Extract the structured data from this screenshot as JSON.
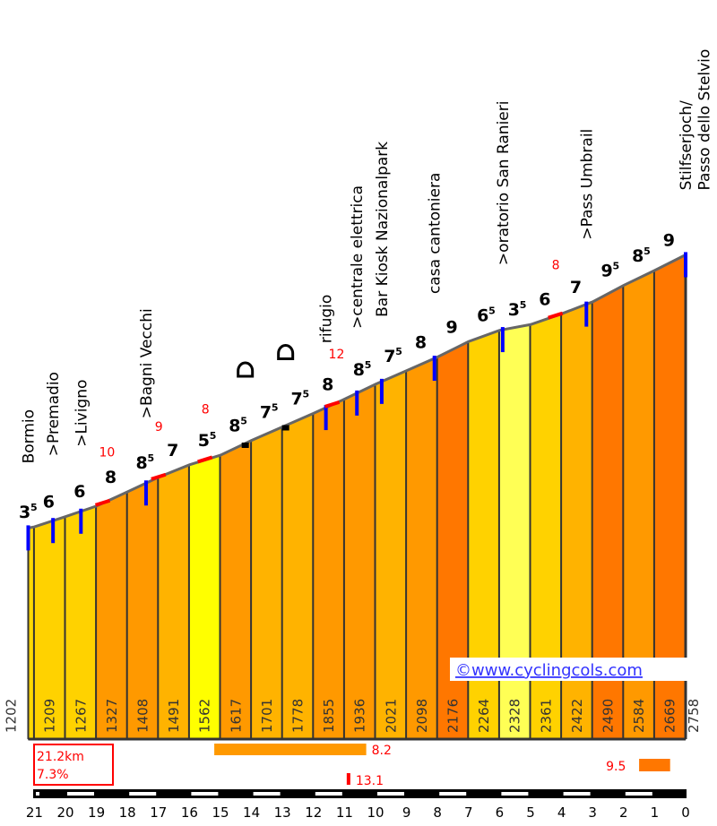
{
  "chart_data": {
    "type": "area",
    "title": "",
    "xlabel": "",
    "ylabel": "",
    "x_axis_km_ticks": [
      21,
      20,
      19,
      18,
      17,
      16,
      15,
      14,
      13,
      12,
      11,
      10,
      9,
      8,
      7,
      6,
      5,
      4,
      3,
      2,
      1,
      0
    ],
    "km_boundaries": [
      21.2,
      21,
      20,
      19,
      18,
      17,
      16,
      15,
      14,
      13,
      12,
      11,
      10,
      9,
      8,
      7,
      6,
      5,
      4,
      3,
      2,
      1,
      0
    ],
    "altitudes": [
      1202,
      1209,
      1267,
      1327,
      1408,
      1491,
      1562,
      1617,
      1701,
      1778,
      1855,
      1936,
      2021,
      2098,
      2176,
      2264,
      2328,
      2361,
      2422,
      2490,
      2584,
      2669,
      2758
    ],
    "segment_gradients": [
      "3.5",
      "6",
      "6",
      "8",
      "8.5",
      "7",
      "5.5",
      "8.5",
      "7.5",
      "7.5",
      "8",
      "8.5",
      "7.5",
      "8",
      "9",
      "6.5",
      "3.5",
      "6",
      "7",
      "9.5",
      "8.5",
      "9"
    ],
    "segment_colors": [
      "#ffd700",
      "#ffd200",
      "#ffd200",
      "#ff9900",
      "#ff9900",
      "#ffb300",
      "#ffff00",
      "#ff9900",
      "#ffb300",
      "#ffb300",
      "#ff9900",
      "#ff9900",
      "#ffb300",
      "#ff9900",
      "#ff7700",
      "#ffd200",
      "#ffff55",
      "#ffd200",
      "#ffb300",
      "#ff7700",
      "#ff9900",
      "#ff7700"
    ],
    "places": [
      {
        "km": 21.2,
        "name": "Bormio"
      },
      {
        "km": 20.4,
        "name": ">Premadio"
      },
      {
        "km": 19.5,
        "name": ">Livigno"
      },
      {
        "km": 17.4,
        "name": ">Bagni Vecchi"
      },
      {
        "km": 11.6,
        "name": "rifugio"
      },
      {
        "km": 10.6,
        "name": ">centrale elettrica"
      },
      {
        "km": 9.8,
        "name": "Bar Kiosk Nazionalpark"
      },
      {
        "km": 8.1,
        "name": "casa cantoniera"
      },
      {
        "km": 5.9,
        "name": ">oratorio San Ranieri"
      },
      {
        "km": 3.2,
        "name": ">Pass Umbrail"
      },
      {
        "km": 0.0,
        "name": "Stilfserjoch/"
      },
      {
        "km": -0.6,
        "name": "Passo dello Stelvio"
      }
    ],
    "max_gradients": [
      {
        "km": 18.8,
        "value": "10"
      },
      {
        "km": 17.0,
        "value": "9"
      },
      {
        "km": 15.5,
        "value": "8"
      },
      {
        "km": 11.4,
        "value": "12"
      },
      {
        "km": 4.2,
        "value": "8"
      }
    ],
    "hairpin_km": [
      14.2,
      12.9
    ],
    "summary": {
      "distance": "21.2km",
      "avg_gradient": "7.3%"
    },
    "stats": [
      {
        "label": "8.2",
        "from_km": 15.2,
        "to_km": 10.3,
        "color": "#ff9900"
      },
      {
        "label": "13.1",
        "km": 10.9,
        "color": "#ff0000"
      },
      {
        "label": "9.5",
        "from_km": 1.5,
        "to_km": 0.5,
        "color": "#ff7700"
      }
    ],
    "copyright": "©www.cyclingcols.com",
    "grid": false
  }
}
